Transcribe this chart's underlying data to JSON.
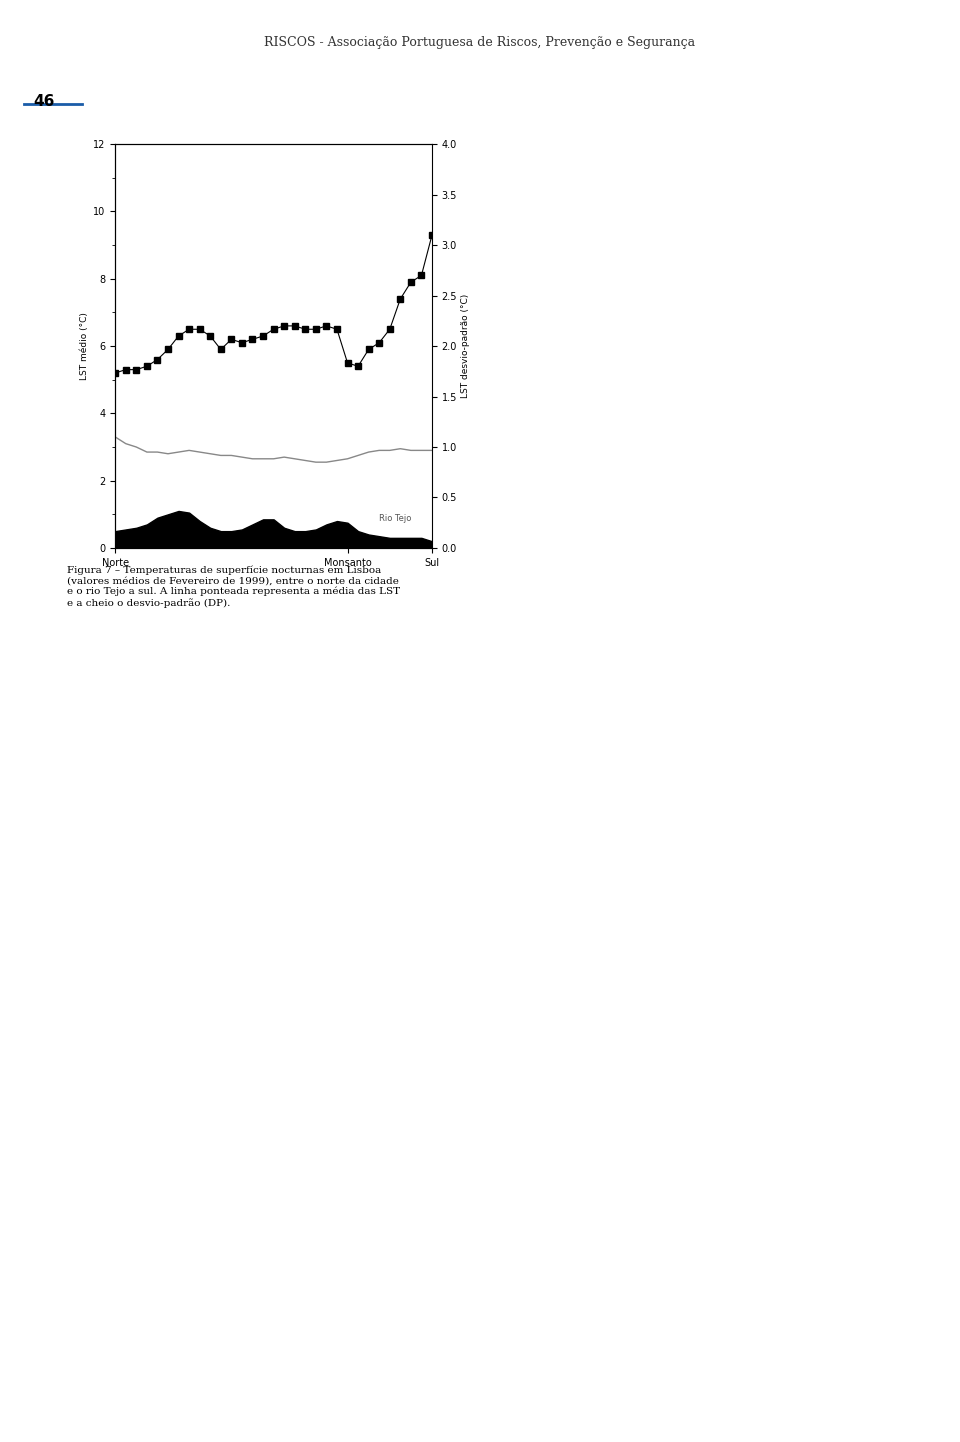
{
  "title": "RISCOS - Associação Portuguesa de Riscos, Prevenção e Segurança",
  "ylabel_left": "LST médio (°C)",
  "ylabel_right": "LST desvio-padrão (°C)",
  "xlabel_left": "Norte",
  "xlabel_mid": "Monsanto",
  "xlabel_right": "Sul",
  "ylim_left": [
    0,
    12
  ],
  "ylim_right": [
    0,
    4.0
  ],
  "yticks_left": [
    0,
    2,
    4,
    6,
    8,
    10,
    12
  ],
  "yticks_right": [
    0.0,
    0.5,
    1.0,
    1.5,
    2.0,
    2.5,
    3.0,
    3.5,
    4.0
  ],
  "page_number": "46",
  "lst_values": [
    5.2,
    5.3,
    5.3,
    5.4,
    5.6,
    5.9,
    6.3,
    6.5,
    6.5,
    6.3,
    5.9,
    6.2,
    6.1,
    6.2,
    6.3,
    6.5,
    6.6,
    6.6,
    6.5,
    6.5,
    6.6,
    6.5,
    5.5,
    5.4,
    5.9,
    6.1,
    6.5,
    7.4,
    7.9,
    8.1,
    9.3
  ],
  "std_values": [
    3.3,
    3.1,
    3.0,
    2.85,
    2.85,
    2.8,
    2.85,
    2.9,
    2.85,
    2.8,
    2.75,
    2.75,
    2.7,
    2.65,
    2.65,
    2.65,
    2.7,
    2.65,
    2.6,
    2.55,
    2.55,
    2.6,
    2.65,
    2.75,
    2.85,
    2.9,
    2.9,
    2.95,
    2.9,
    2.9,
    2.9
  ],
  "terrain_values": [
    0.5,
    0.55,
    0.6,
    0.7,
    0.9,
    1.0,
    1.1,
    1.05,
    0.8,
    0.6,
    0.5,
    0.5,
    0.55,
    0.7,
    0.85,
    0.85,
    0.6,
    0.5,
    0.5,
    0.55,
    0.7,
    0.8,
    0.75,
    0.5,
    0.4,
    0.35,
    0.3,
    0.3,
    0.3,
    0.3,
    0.2
  ],
  "n_points": 31,
  "figure_caption": "Figura 7 – Temperaturas de superfície nocturnas em Lisboa\n(valores médios de Fevereiro de 1999), entre o norte da cidade\ne o rio Tejo a sul. A linha ponteada representa a média das LST\ne a cheio o desvio-padrão (DP).",
  "bg_color": "#ffffff",
  "line_color": "#000000",
  "std_line_color": "#888888",
  "terrain_color": "#000000",
  "marker": "s",
  "marker_size": 5
}
